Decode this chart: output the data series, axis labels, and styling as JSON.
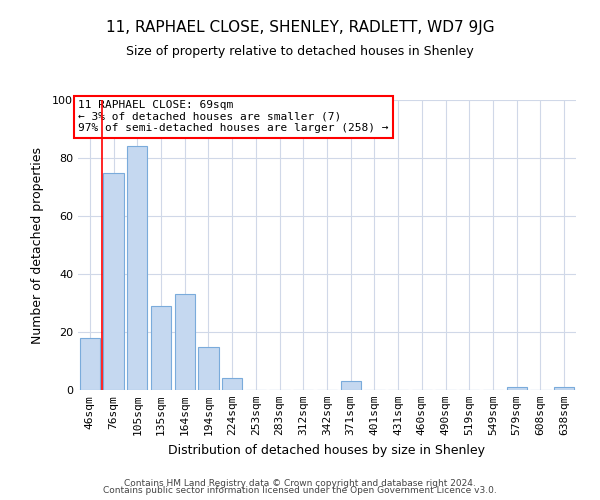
{
  "title_line1": "11, RAPHAEL CLOSE, SHENLEY, RADLETT, WD7 9JG",
  "title_line2": "Size of property relative to detached houses in Shenley",
  "xlabel": "Distribution of detached houses by size in Shenley",
  "ylabel": "Number of detached properties",
  "footer_line1": "Contains HM Land Registry data © Crown copyright and database right 2024.",
  "footer_line2": "Contains public sector information licensed under the Open Government Licence v3.0.",
  "annotation_line1": "11 RAPHAEL CLOSE: 69sqm",
  "annotation_line2": "← 3% of detached houses are smaller (7)",
  "annotation_line3": "97% of semi-detached houses are larger (258) →",
  "bar_labels": [
    "46sqm",
    "76sqm",
    "105sqm",
    "135sqm",
    "164sqm",
    "194sqm",
    "224sqm",
    "253sqm",
    "283sqm",
    "312sqm",
    "342sqm",
    "371sqm",
    "401sqm",
    "431sqm",
    "460sqm",
    "490sqm",
    "519sqm",
    "549sqm",
    "579sqm",
    "608sqm",
    "638sqm"
  ],
  "bar_heights": [
    18,
    75,
    84,
    29,
    33,
    15,
    4,
    0,
    0,
    0,
    0,
    3,
    0,
    0,
    0,
    0,
    0,
    0,
    1,
    0,
    1
  ],
  "bar_color": "#c5d8f0",
  "bar_edge_color": "#7aabdb",
  "ylim": [
    0,
    100
  ],
  "yticks": [
    0,
    20,
    40,
    60,
    80,
    100
  ],
  "background_color": "#ffffff",
  "grid_color": "#d0d8e8",
  "title_fontsize": 11,
  "subtitle_fontsize": 9,
  "xlabel_fontsize": 9,
  "ylabel_fontsize": 9,
  "tick_fontsize": 8,
  "footer_fontsize": 6.5,
  "annot_fontsize": 8
}
